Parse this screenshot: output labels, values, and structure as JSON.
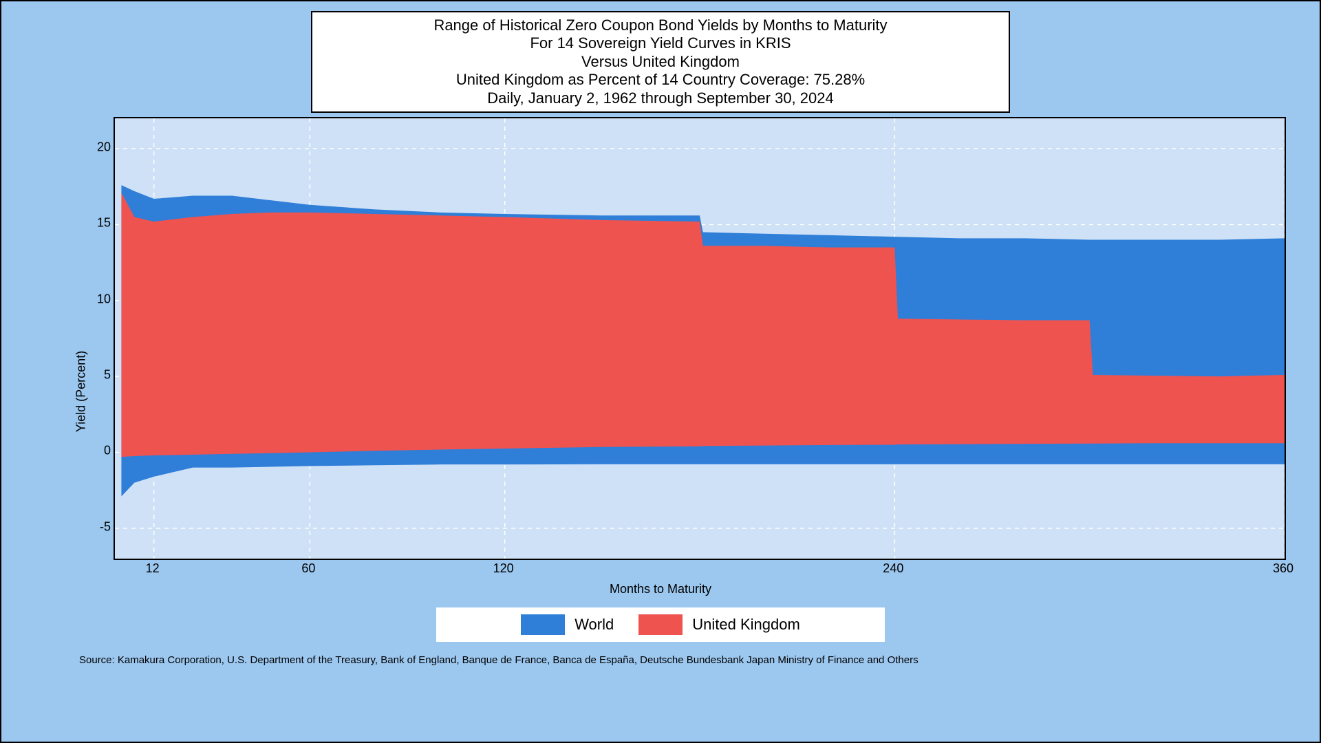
{
  "title": {
    "line1": "Range of Historical Zero Coupon Bond Yields by Months to Maturity",
    "line2": "For 14 Sovereign Yield Curves in KRIS",
    "line3": "Versus United Kingdom",
    "line4": "United Kingdom as Percent of 14 Country Coverage: 75.28%",
    "line5": "Daily, January 2, 1962 through September 30, 2024"
  },
  "chart": {
    "type": "area-range",
    "xlabel": "Months to Maturity",
    "ylabel": "Yield (Percent)",
    "xlim": [
      0,
      360
    ],
    "ylim": [
      -7,
      22
    ],
    "xticks": [
      12,
      60,
      120,
      240,
      360
    ],
    "yticks": [
      -5,
      0,
      5,
      10,
      15,
      20
    ],
    "background_color": "#cee1f6",
    "page_background_color": "#9cc7ef",
    "grid_color": "#ffffff",
    "grid_dash": "6,6",
    "grid_width": 1.5,
    "border_color": "#000000",
    "title_fontsize": 22,
    "axis_fontsize": 18,
    "legend_fontsize": 22,
    "series": {
      "world": {
        "label": "World",
        "color": "#2f7ed8",
        "x": [
          2,
          6,
          12,
          24,
          36,
          48,
          60,
          80,
          100,
          120,
          150,
          180,
          181,
          200,
          220,
          240,
          260,
          280,
          300,
          320,
          340,
          360
        ],
        "upper": [
          17.6,
          17.2,
          16.7,
          16.9,
          16.9,
          16.6,
          16.3,
          16.0,
          15.8,
          15.7,
          15.6,
          15.6,
          14.5,
          14.4,
          14.3,
          14.2,
          14.1,
          14.1,
          14.0,
          14.0,
          14.0,
          14.1
        ],
        "lower": [
          -2.9,
          -2.0,
          -1.6,
          -1.0,
          -1.0,
          -0.95,
          -0.9,
          -0.85,
          -0.8,
          -0.8,
          -0.78,
          -0.78,
          -0.78,
          -0.78,
          -0.78,
          -0.78,
          -0.78,
          -0.78,
          -0.78,
          -0.78,
          -0.78,
          -0.78
        ]
      },
      "uk": {
        "label": "United Kingdom",
        "color": "#ef5350",
        "x": [
          2,
          6,
          12,
          24,
          36,
          48,
          60,
          80,
          100,
          120,
          150,
          180,
          181,
          200,
          220,
          240,
          241,
          260,
          280,
          300,
          301,
          320,
          340,
          360
        ],
        "upper": [
          17.1,
          15.5,
          15.2,
          15.5,
          15.7,
          15.8,
          15.8,
          15.7,
          15.6,
          15.5,
          15.3,
          15.2,
          13.6,
          13.6,
          13.5,
          13.5,
          8.8,
          8.75,
          8.7,
          8.7,
          5.1,
          5.05,
          5.0,
          5.1
        ],
        "lower": [
          -0.3,
          -0.25,
          -0.2,
          -0.15,
          -0.1,
          -0.05,
          0.0,
          0.1,
          0.18,
          0.25,
          0.35,
          0.4,
          0.42,
          0.45,
          0.48,
          0.5,
          0.52,
          0.54,
          0.56,
          0.58,
          0.58,
          0.6,
          0.6,
          0.6
        ]
      }
    }
  },
  "legend": {
    "items": [
      {
        "label": "World",
        "color": "#2f7ed8"
      },
      {
        "label": "United Kingdom",
        "color": "#ef5350"
      }
    ]
  },
  "source": "Source: Kamakura Corporation, U.S. Department of the Treasury, Bank of England, Banque de France, Banca de España, Deutsche Bundesbank Japan Ministry of Finance and Others"
}
